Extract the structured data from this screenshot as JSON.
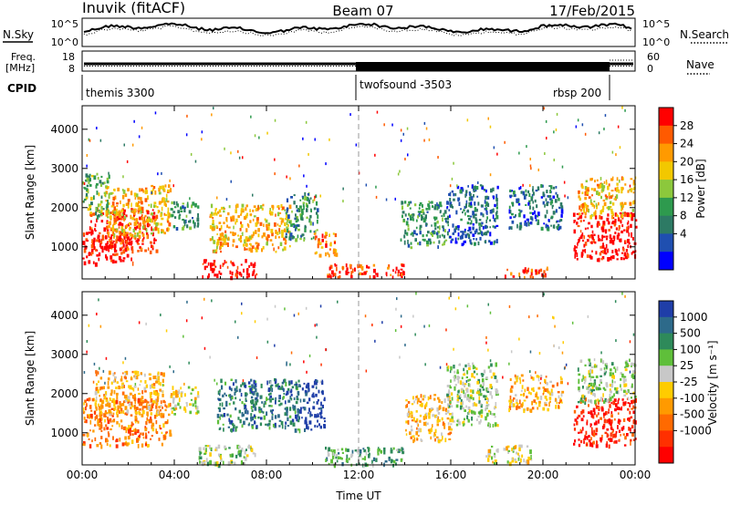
{
  "header": {
    "station": "Inuvik (fitACF)",
    "beam": "Beam 07",
    "date": "17/Feb/2015"
  },
  "summary_panel": {
    "nsky_label": "N.Sky",
    "nsky_ticks": [
      "10^5",
      "10^0"
    ],
    "nsearch_label": "N.Search",
    "nsearch_ticks": [
      "10^5",
      "10^0"
    ],
    "freq_label_1": "Freq.",
    "freq_label_2": "[MHz]",
    "freq_ticks": [
      "18",
      "8"
    ],
    "nave_label": "Nave",
    "nave_ticks": [
      "60",
      "0"
    ],
    "cpid_label": "CPID",
    "cpid_segments": [
      {
        "name": "themis 3300",
        "start_h": 0,
        "end_h": 12
      },
      {
        "name": "twofsound -3503",
        "start_h": 12,
        "end_h": 22.7
      },
      {
        "name": "rbsp 200",
        "start_h": 22.7,
        "end_h": 24
      }
    ]
  },
  "power_colorbar": {
    "label": "Power [dB]",
    "ticks": [
      "28",
      "24",
      "20",
      "16",
      "12",
      "8",
      "4"
    ],
    "colors": [
      "#ff0000",
      "#ff5a00",
      "#ff9a00",
      "#f2c800",
      "#8cc83c",
      "#2e9a4e",
      "#2d7a64",
      "#1f4fb0",
      "#0000ff"
    ]
  },
  "velocity_colorbar": {
    "label": "Velocity [m s⁻¹]",
    "ticks": [
      "1000",
      "500",
      "100",
      "25",
      "-25",
      "-100",
      "-500",
      "-1000"
    ],
    "colors": [
      "#1f3ea8",
      "#2d6a8a",
      "#2e8a5a",
      "#5fbf3a",
      "#c8c8c8",
      "#ffcc00",
      "#ff9a00",
      "#ff6a00",
      "#ff3000",
      "#ff0000"
    ]
  },
  "chart_data": [
    {
      "type": "heatmap",
      "panel": "power",
      "ylabel": "Slant Range [km]",
      "xlim_hours": [
        0,
        24
      ],
      "ylim_km": [
        180,
        4600
      ],
      "yticks": [
        "1000",
        "2000",
        "3000",
        "4000"
      ],
      "clusters": [
        {
          "t0": 0.0,
          "t1": 2.2,
          "r0": 600,
          "r1": 1400,
          "c": 0
        },
        {
          "t0": 0.3,
          "t1": 3.2,
          "r0": 900,
          "r1": 2000,
          "c": 1
        },
        {
          "t0": 1.0,
          "t1": 3.8,
          "r0": 1300,
          "r1": 2600,
          "c": 3
        },
        {
          "t0": 0.0,
          "t1": 1.2,
          "r0": 1800,
          "r1": 2900,
          "c": 5
        },
        {
          "t0": 3.8,
          "t1": 5.0,
          "r0": 1500,
          "r1": 2200,
          "c": 6
        },
        {
          "t0": 5.2,
          "t1": 7.6,
          "r0": 250,
          "r1": 700,
          "c": 0
        },
        {
          "t0": 5.5,
          "t1": 9.0,
          "r0": 900,
          "r1": 2100,
          "c": 3
        },
        {
          "t0": 8.8,
          "t1": 10.2,
          "r0": 1200,
          "r1": 2400,
          "c": 6
        },
        {
          "t0": 10.0,
          "t1": 11.0,
          "r0": 800,
          "r1": 1400,
          "c": 2
        },
        {
          "t0": 10.6,
          "t1": 14.0,
          "r0": 250,
          "r1": 600,
          "c": 1
        },
        {
          "t0": 13.8,
          "t1": 15.8,
          "r0": 1000,
          "r1": 2200,
          "c": 6
        },
        {
          "t0": 15.8,
          "t1": 18.0,
          "r0": 1100,
          "r1": 2600,
          "c": 7
        },
        {
          "t0": 18.2,
          "t1": 20.2,
          "r0": 250,
          "r1": 500,
          "c": 1
        },
        {
          "t0": 18.5,
          "t1": 20.8,
          "r0": 1500,
          "r1": 2600,
          "c": 7
        },
        {
          "t0": 21.3,
          "t1": 24.0,
          "r0": 700,
          "r1": 1900,
          "c": 0
        },
        {
          "t0": 21.5,
          "t1": 24.0,
          "r0": 1800,
          "r1": 2800,
          "c": 3
        }
      ]
    },
    {
      "type": "heatmap",
      "panel": "velocity",
      "xlabel": "Time UT",
      "ylabel": "Slant Range [km]",
      "xlim_hours": [
        0,
        24
      ],
      "ylim_km": [
        180,
        4600
      ],
      "yticks": [
        "1000",
        "2000",
        "3000",
        "4000"
      ],
      "xticks": [
        "00:00",
        "04:00",
        "08:00",
        "12:00",
        "16:00",
        "20:00",
        "00:00"
      ],
      "clusters": [
        {
          "t0": 0.0,
          "t1": 3.8,
          "r0": 700,
          "r1": 1900,
          "c": 7
        },
        {
          "t0": 0.5,
          "t1": 3.5,
          "r0": 1500,
          "r1": 2600,
          "c": 6
        },
        {
          "t0": 3.8,
          "t1": 5.0,
          "r0": 1500,
          "r1": 2200,
          "c": 5
        },
        {
          "t0": 5.0,
          "t1": 7.5,
          "r0": 200,
          "r1": 700,
          "c": 4
        },
        {
          "t0": 5.8,
          "t1": 9.5,
          "r0": 1100,
          "r1": 2400,
          "c": 2
        },
        {
          "t0": 9.5,
          "t1": 10.5,
          "r0": 1100,
          "r1": 2400,
          "c": 0
        },
        {
          "t0": 10.5,
          "t1": 14.0,
          "r0": 200,
          "r1": 650,
          "c": 3
        },
        {
          "t0": 14.0,
          "t1": 16.0,
          "r0": 800,
          "r1": 2000,
          "c": 6
        },
        {
          "t0": 15.8,
          "t1": 18.0,
          "r0": 1200,
          "r1": 2800,
          "c": 4
        },
        {
          "t0": 17.5,
          "t1": 19.5,
          "r0": 250,
          "r1": 700,
          "c": 5
        },
        {
          "t0": 18.5,
          "t1": 20.8,
          "r0": 1600,
          "r1": 2500,
          "c": 6
        },
        {
          "t0": 21.3,
          "t1": 24.0,
          "r0": 700,
          "r1": 1900,
          "c": 9
        },
        {
          "t0": 21.5,
          "t1": 24.0,
          "r0": 1800,
          "r1": 2900,
          "c": 4
        }
      ]
    }
  ]
}
